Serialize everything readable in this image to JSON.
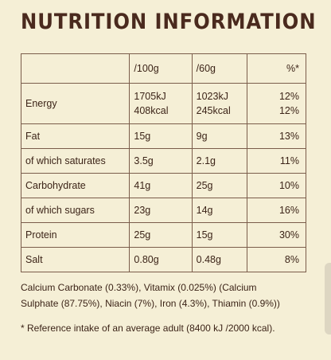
{
  "title": "NUTRITION INFORMATION",
  "table": {
    "headers": [
      "",
      "/100g",
      "/60g",
      "%*"
    ],
    "energy": {
      "label": "Energy",
      "per100_kj": "1705kJ",
      "per100_kcal": "408kcal",
      "per60_kj": "1023kJ",
      "per60_kcal": "245kcal",
      "pct_kj": "12%",
      "pct_kcal": "12%"
    },
    "rows": [
      {
        "label": "Fat",
        "per100": "15g",
        "per60": "9g",
        "pct": "13%"
      },
      {
        "label": "of which saturates",
        "per100": "3.5g",
        "per60": "2.1g",
        "pct": "11%"
      },
      {
        "label": "Carbohydrate",
        "per100": "41g",
        "per60": "25g",
        "pct": "10%"
      },
      {
        "label": "of which sugars",
        "per100": "23g",
        "per60": "14g",
        "pct": "16%"
      },
      {
        "label": "Protein",
        "per100": "25g",
        "per60": "15g",
        "pct": "30%"
      },
      {
        "label": "Salt",
        "per100": "0.80g",
        "per60": "0.48g",
        "pct": "8%"
      }
    ]
  },
  "notes": {
    "line1": "Calcium Carbonate (0.33%), Vitamix (0.025%) (Calcium",
    "line2": "Sulphate (87.75%), Niacin (7%), Iron (4.3%), Thiamin (0.9%))"
  },
  "footnote": "* Reference intake of an average adult (8400 kJ /2000 kcal)."
}
